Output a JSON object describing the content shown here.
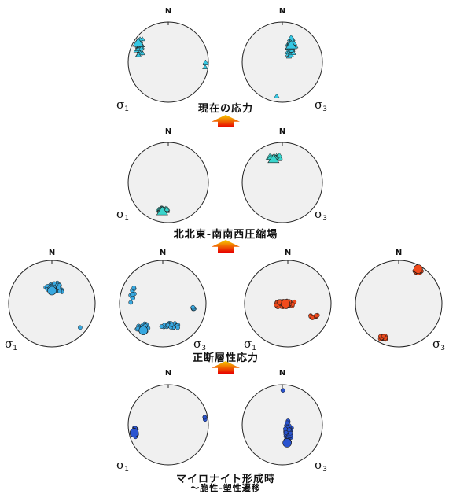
{
  "north_label": "N",
  "stages": [
    {
      "caption": "現在の応力",
      "nets": [
        {
          "id": "present-s1",
          "sigma_symbol": "σ",
          "sigma_sub": "1",
          "marker": "triangle",
          "color": "#36c8e4"
        },
        {
          "id": "present-s3",
          "sigma_symbol": "σ",
          "sigma_sub": "3",
          "marker": "triangle",
          "color": "#36c8e4"
        }
      ]
    },
    {
      "caption": "北北東-南南西圧縮場",
      "nets": [
        {
          "id": "nne-s1",
          "sigma_symbol": "σ",
          "sigma_sub": "1",
          "marker": "triangle",
          "color": "#3ad4cc"
        },
        {
          "id": "nne-s3",
          "sigma_symbol": "σ",
          "sigma_sub": "3",
          "marker": "triangle",
          "color": "#3ad4cc"
        }
      ]
    },
    {
      "caption": "正断層性応力",
      "nets": [
        {
          "id": "normal-a-s1",
          "sigma_symbol": "σ",
          "sigma_sub": "1",
          "marker": "dot",
          "color": "#38a8e0"
        },
        {
          "id": "normal-a-s3",
          "sigma_symbol": "σ",
          "sigma_sub": "3",
          "marker": "dot",
          "color": "#38a8e0"
        },
        {
          "id": "normal-b-s1",
          "sigma_symbol": "σ",
          "sigma_sub": "1",
          "marker": "dot",
          "color": "#f04a1c"
        },
        {
          "id": "normal-b-s3",
          "sigma_symbol": "σ",
          "sigma_sub": "3",
          "marker": "dot",
          "color": "#f04a1c"
        }
      ]
    },
    {
      "caption": "マイロナイト形成時",
      "caption_line2": "〜脆性-塑性遷移",
      "nets": [
        {
          "id": "mylonite-s1",
          "sigma_symbol": "σ",
          "sigma_sub": "1",
          "marker": "dot",
          "color": "#2a54d0"
        },
        {
          "id": "mylonite-s3",
          "sigma_symbol": "σ",
          "sigma_sub": "3",
          "marker": "dot",
          "color": "#2a54d0"
        }
      ]
    }
  ],
  "arrow_colors": {
    "top": "#f7d000",
    "bottom": "#e80000"
  }
}
